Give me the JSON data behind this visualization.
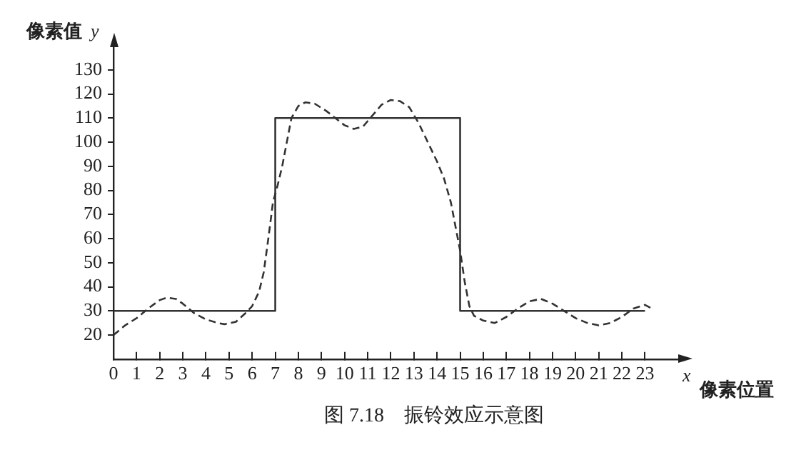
{
  "chart_data": {
    "type": "line",
    "xlabel": "x",
    "ylabel": "y",
    "annotations": [
      "像素值",
      "像素位置",
      "图 7.18　振铃效应示意图"
    ],
    "xlim": [
      0,
      24.5
    ],
    "xticks": [
      0,
      1,
      2,
      3,
      4,
      5,
      6,
      7,
      8,
      9,
      10,
      11,
      12,
      13,
      14,
      15,
      16,
      17,
      18,
      19,
      20,
      21,
      22,
      23
    ],
    "ylim": [
      10,
      140
    ],
    "yticks": [
      20,
      30,
      40,
      50,
      60,
      70,
      80,
      90,
      100,
      110,
      120,
      130
    ],
    "grid": false,
    "legend": false,
    "marker": "none",
    "series": [
      {
        "color": "#333333",
        "line_style": "solid",
        "x": [
          0,
          7,
          7,
          15,
          15,
          23
        ],
        "values": [
          30,
          30,
          110,
          110,
          30,
          30
        ]
      },
      {
        "color": "#333333",
        "line_style": "dashed",
        "x": [
          0,
          0.5,
          1,
          1.5,
          2,
          2.3,
          2.7,
          3,
          3.5,
          4,
          4.5,
          4.8,
          5.3,
          5.7,
          6,
          6.3,
          6.5,
          6.7,
          6.9,
          7.1,
          7.3,
          7.5,
          7.7,
          8,
          8.3,
          8.7,
          9.2,
          9.6,
          10,
          10.4,
          10.8,
          11.2,
          11.6,
          12,
          12.4,
          12.8,
          13.2,
          13.6,
          14,
          14.3,
          14.6,
          14.8,
          15,
          15.2,
          15.4,
          15.6,
          16,
          16.5,
          17,
          17.5,
          18,
          18.5,
          19,
          19.5,
          20,
          20.5,
          21,
          21.5,
          22,
          22.5,
          23,
          23.3
        ],
        "values": [
          20,
          24,
          27,
          31,
          34.5,
          35.5,
          35,
          33,
          29,
          26.5,
          25,
          24.5,
          25.5,
          29,
          32,
          38,
          46,
          60,
          75,
          82,
          90,
          100,
          110,
          115,
          116.5,
          116,
          113,
          110,
          107,
          105.5,
          106.5,
          111,
          115.5,
          117.5,
          117,
          114.5,
          108,
          100,
          92,
          85,
          75,
          65,
          55,
          42,
          32,
          28,
          26,
          25,
          27.5,
          31,
          34,
          35,
          33,
          30,
          27,
          25,
          24,
          25,
          27.5,
          31,
          32.5,
          31
        ]
      }
    ]
  }
}
